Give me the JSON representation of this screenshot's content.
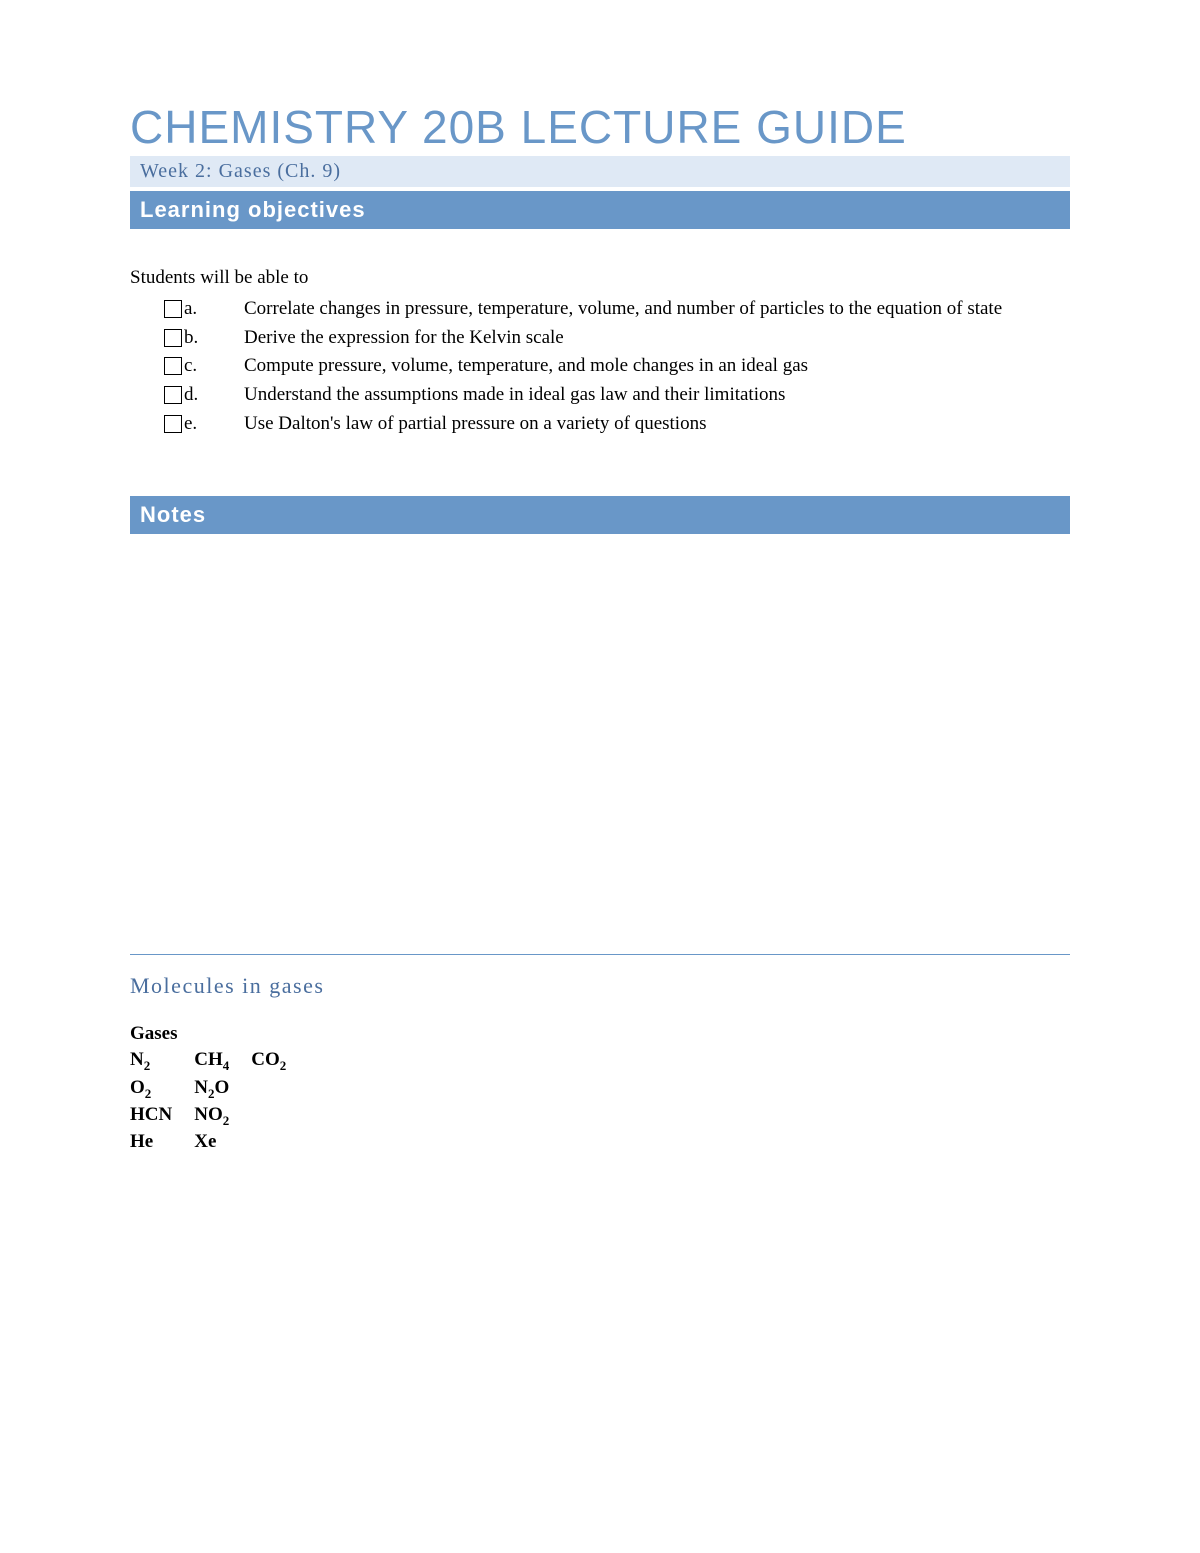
{
  "title": "CHEMISTRY 20B LECTURE GUIDE",
  "subtitle": "Week 2: Gases (Ch. 9)",
  "sections": {
    "learning_objectives": {
      "header": "Learning objectives",
      "intro": "Students will be able to",
      "items": [
        {
          "letter": "a.",
          "text": "Correlate changes in pressure, temperature, volume, and number of particles to the equation of state"
        },
        {
          "letter": "b.",
          "text": "Derive the expression for the Kelvin scale"
        },
        {
          "letter": "c.",
          "text": "Compute pressure, volume, temperature, and mole changes in an ideal gas"
        },
        {
          "letter": "d.",
          "text": "Understand the assumptions made in ideal gas law and their limitations"
        },
        {
          "letter": "e.",
          "text": "Use Dalton's law of partial pressure on a variety of questions"
        }
      ]
    },
    "notes": {
      "header": "Notes"
    },
    "molecules": {
      "title": "Molecules in gases",
      "label": "Gases",
      "table": [
        [
          "N|2",
          "CH|4",
          "CO|2"
        ],
        [
          "O|2",
          "N|2|O",
          ""
        ],
        [
          "HCN",
          "NO|2",
          ""
        ],
        [
          "He",
          "Xe",
          ""
        ]
      ]
    }
  },
  "colors": {
    "blue_light": "#6997c8",
    "blue_dark": "#4a6e9e",
    "blue_pale": "#dfe9f5",
    "white": "#ffffff",
    "black": "#000000"
  }
}
